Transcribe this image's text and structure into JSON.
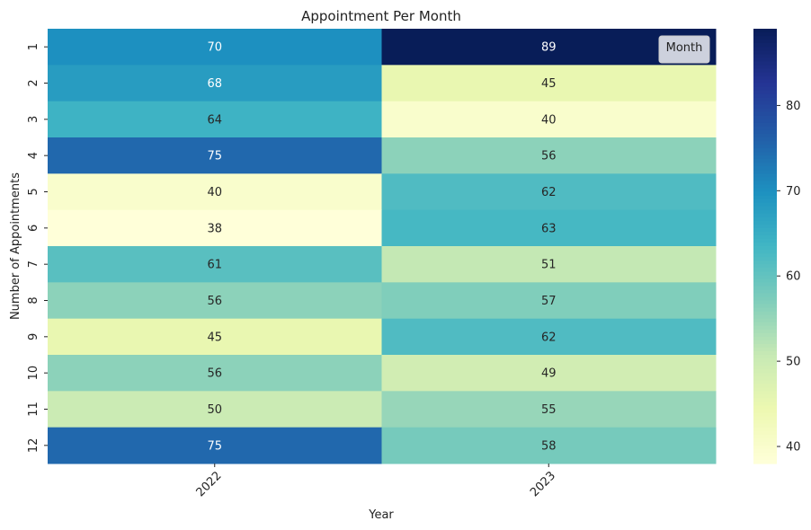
{
  "chart_data": {
    "type": "heatmap",
    "title": "Appointment Per Month",
    "xlabel": "Year",
    "ylabel": "Number of Appointments",
    "x_categories": [
      "2022",
      "2023"
    ],
    "y_categories": [
      "1",
      "2",
      "3",
      "4",
      "5",
      "6",
      "7",
      "8",
      "9",
      "10",
      "11",
      "12"
    ],
    "values": [
      [
        70,
        89
      ],
      [
        68,
        45
      ],
      [
        64,
        40
      ],
      [
        75,
        56
      ],
      [
        40,
        62
      ],
      [
        38,
        63
      ],
      [
        61,
        51
      ],
      [
        56,
        57
      ],
      [
        45,
        62
      ],
      [
        56,
        49
      ],
      [
        50,
        55
      ],
      [
        75,
        58
      ]
    ],
    "colormap": "YlGnBu",
    "value_range": [
      38,
      89
    ],
    "colorbar_ticks": [
      40,
      50,
      60,
      70,
      80
    ],
    "legend": {
      "title": "Month",
      "placement": "upper-right"
    },
    "annotated": true,
    "x_tick_rotation": 45,
    "y_tick_rotation": 90
  }
}
